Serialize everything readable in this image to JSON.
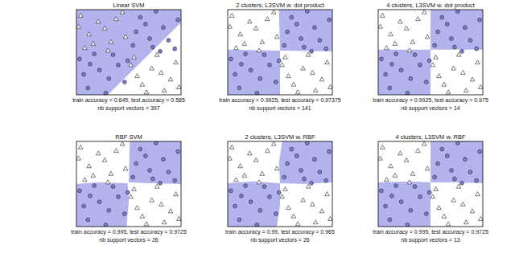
{
  "chart_data": [
    {
      "type": "scatter",
      "title": "Linear SVM",
      "annotations": [
        "train accuracy = 0.645, test accuracy = 0.585",
        "nb support vectors = 397"
      ],
      "xlim": [
        0,
        1
      ],
      "ylim": [
        0,
        1
      ],
      "tick_labels": false,
      "regions": [
        {
          "x": [
            0,
            0.3,
            1,
            1,
            0
          ],
          "y": [
            0,
            0,
            0.85,
            1,
            1
          ],
          "color": "#b3b3ee"
        }
      ],
      "series": [
        {
          "marker": "triangle",
          "color": "#ffffff",
          "x": [
            0.04,
            0.12,
            0.21,
            0.33,
            0.44,
            0.08,
            0.27,
            0.38,
            0.16,
            0.47,
            0.02,
            0.3,
            0.55,
            0.63,
            0.72,
            0.84,
            0.95,
            0.58,
            0.77,
            0.9,
            0.67,
            0.98,
            0.81,
            0.52
          ],
          "values": [
            0.93,
            0.71,
            0.86,
            0.62,
            0.97,
            0.55,
            0.78,
            0.89,
            0.6,
            0.68,
            0.8,
            0.52,
            0.44,
            0.12,
            0.31,
            0.05,
            0.38,
            0.22,
            0.47,
            0.18,
            0.03,
            0.09,
            0.26,
            0.35
          ]
        },
        {
          "marker": "circle",
          "color": "#7b7bd9",
          "x": [
            0.54,
            0.61,
            0.7,
            0.83,
            0.94,
            0.57,
            0.76,
            0.88,
            0.66,
            0.97,
            0.8,
            0.73,
            0.03,
            0.11,
            0.22,
            0.35,
            0.46,
            0.07,
            0.28,
            0.4,
            0.17,
            0.49,
            0.13,
            0.31
          ],
          "values": [
            0.58,
            0.91,
            0.66,
            0.79,
            0.54,
            0.74,
            0.98,
            0.64,
            0.83,
            0.88,
            0.51,
            0.56,
            0.42,
            0.08,
            0.29,
            0.47,
            0.15,
            0.24,
            0.02,
            0.35,
            0.48,
            0.4,
            0.36,
            0.19
          ]
        }
      ]
    },
    {
      "type": "scatter",
      "title": "2 clusters, L3SVM w. dot product",
      "annotations": [
        "train accuracy = 0.9925, test accuracy = 0.97375",
        "nb support vectors = 141"
      ],
      "xlim": [
        0,
        1
      ],
      "ylim": [
        0,
        1
      ],
      "tick_labels": false,
      "regions": [
        {
          "x": [
            0.5,
            1,
            1,
            0.49
          ],
          "y": [
            0.52,
            0.51,
            1,
            1
          ],
          "color": "#b3b3ee"
        },
        {
          "x": [
            0,
            0.5,
            0.5,
            0
          ],
          "y": [
            0,
            0,
            0.52,
            0.53
          ],
          "color": "#b3b3ee"
        }
      ],
      "series": [
        {
          "marker": "triangle",
          "color": "#ffffff",
          "x": [
            0.04,
            0.12,
            0.21,
            0.33,
            0.44,
            0.08,
            0.27,
            0.38,
            0.16,
            0.47,
            0.02,
            0.3,
            0.55,
            0.63,
            0.72,
            0.84,
            0.95,
            0.58,
            0.77,
            0.9,
            0.67,
            0.98,
            0.81,
            0.52
          ],
          "values": [
            0.93,
            0.71,
            0.86,
            0.62,
            0.97,
            0.55,
            0.78,
            0.89,
            0.6,
            0.68,
            0.8,
            0.52,
            0.44,
            0.12,
            0.31,
            0.05,
            0.38,
            0.22,
            0.47,
            0.18,
            0.03,
            0.09,
            0.26,
            0.35
          ]
        },
        {
          "marker": "circle",
          "color": "#7b7bd9",
          "x": [
            0.54,
            0.61,
            0.7,
            0.83,
            0.94,
            0.57,
            0.76,
            0.88,
            0.66,
            0.97,
            0.8,
            0.73,
            0.03,
            0.11,
            0.22,
            0.35,
            0.46,
            0.07,
            0.28,
            0.4,
            0.17,
            0.49,
            0.13,
            0.31
          ],
          "values": [
            0.58,
            0.91,
            0.66,
            0.79,
            0.54,
            0.74,
            0.98,
            0.64,
            0.83,
            0.88,
            0.51,
            0.56,
            0.42,
            0.08,
            0.29,
            0.47,
            0.15,
            0.24,
            0.02,
            0.35,
            0.48,
            0.4,
            0.36,
            0.19
          ]
        }
      ]
    },
    {
      "type": "scatter",
      "title": "4 clusters, L3SVM w. dot product",
      "annotations": [
        "train accuracy = 0.9925, test accuracy = 0.975",
        "nb support vectors = 14"
      ],
      "xlim": [
        0,
        1
      ],
      "ylim": [
        0,
        1
      ],
      "tick_labels": false,
      "regions": [
        {
          "x": [
            0.5,
            1,
            1,
            0.5
          ],
          "y": [
            0.53,
            0.53,
            1,
            1
          ],
          "color": "#b3b3ee"
        },
        {
          "x": [
            0,
            0.5,
            0.5,
            0
          ],
          "y": [
            0,
            0,
            0.53,
            0.53
          ],
          "color": "#b3b3ee"
        }
      ],
      "series": [
        {
          "marker": "triangle",
          "color": "#ffffff",
          "x": [
            0.04,
            0.12,
            0.21,
            0.33,
            0.44,
            0.08,
            0.27,
            0.38,
            0.16,
            0.47,
            0.02,
            0.3,
            0.55,
            0.63,
            0.72,
            0.84,
            0.95,
            0.58,
            0.77,
            0.9,
            0.67,
            0.98,
            0.81,
            0.52
          ],
          "values": [
            0.93,
            0.71,
            0.86,
            0.62,
            0.97,
            0.55,
            0.78,
            0.89,
            0.6,
            0.68,
            0.8,
            0.52,
            0.44,
            0.12,
            0.31,
            0.05,
            0.38,
            0.22,
            0.47,
            0.18,
            0.03,
            0.09,
            0.26,
            0.35
          ]
        },
        {
          "marker": "circle",
          "color": "#7b7bd9",
          "x": [
            0.54,
            0.61,
            0.7,
            0.83,
            0.94,
            0.57,
            0.76,
            0.88,
            0.66,
            0.97,
            0.8,
            0.73,
            0.03,
            0.11,
            0.22,
            0.35,
            0.46,
            0.07,
            0.28,
            0.4,
            0.17,
            0.49,
            0.13,
            0.31
          ],
          "values": [
            0.58,
            0.91,
            0.66,
            0.79,
            0.54,
            0.74,
            0.98,
            0.64,
            0.83,
            0.88,
            0.51,
            0.56,
            0.42,
            0.08,
            0.29,
            0.47,
            0.15,
            0.24,
            0.02,
            0.35,
            0.48,
            0.4,
            0.36,
            0.19
          ]
        }
      ]
    },
    {
      "type": "scatter",
      "title": "RBF SVM",
      "annotations": [
        "train accuracy = 0.995, test accuracy = 0.9725",
        "nb support vectors = 26"
      ],
      "xlim": [
        0,
        1
      ],
      "ylim": [
        0,
        1
      ],
      "tick_labels": false,
      "regions": [
        {
          "x": [
            0.5,
            0.7,
            1,
            1,
            0.51
          ],
          "y": [
            0.52,
            0.51,
            0.5,
            1,
            1
          ],
          "color": "#b3b3ee"
        },
        {
          "x": [
            0,
            0.48,
            0.5,
            0.49,
            0.2,
            0
          ],
          "y": [
            0,
            0,
            0.3,
            0.51,
            0.52,
            0.5
          ],
          "color": "#b3b3ee"
        }
      ],
      "series": [
        {
          "marker": "triangle",
          "color": "#ffffff",
          "x": [
            0.04,
            0.12,
            0.21,
            0.33,
            0.44,
            0.08,
            0.27,
            0.38,
            0.16,
            0.47,
            0.02,
            0.3,
            0.55,
            0.63,
            0.72,
            0.84,
            0.95,
            0.58,
            0.77,
            0.9,
            0.67,
            0.98,
            0.81,
            0.52
          ],
          "values": [
            0.93,
            0.71,
            0.86,
            0.62,
            0.97,
            0.55,
            0.78,
            0.89,
            0.6,
            0.68,
            0.8,
            0.52,
            0.44,
            0.12,
            0.31,
            0.05,
            0.38,
            0.22,
            0.47,
            0.18,
            0.03,
            0.09,
            0.26,
            0.35
          ]
        },
        {
          "marker": "circle",
          "color": "#7b7bd9",
          "x": [
            0.54,
            0.61,
            0.7,
            0.83,
            0.94,
            0.57,
            0.76,
            0.88,
            0.66,
            0.97,
            0.8,
            0.73,
            0.03,
            0.11,
            0.22,
            0.35,
            0.46,
            0.07,
            0.28,
            0.4,
            0.17,
            0.49,
            0.13,
            0.31
          ],
          "values": [
            0.58,
            0.91,
            0.66,
            0.79,
            0.54,
            0.74,
            0.98,
            0.64,
            0.83,
            0.88,
            0.51,
            0.56,
            0.42,
            0.08,
            0.29,
            0.47,
            0.15,
            0.24,
            0.02,
            0.35,
            0.48,
            0.4,
            0.36,
            0.19
          ]
        }
      ]
    },
    {
      "type": "scatter",
      "title": "2 clusters, L3SVM w. RBF",
      "annotations": [
        "train accuracy = 0.99, test accuracy = 0.965",
        "nb support vectors = 26"
      ],
      "xlim": [
        0,
        1
      ],
      "ylim": [
        0,
        1
      ],
      "tick_labels": false,
      "regions": [
        {
          "x": [
            0.5,
            0.75,
            1,
            1,
            0.52,
            0.49
          ],
          "y": [
            0.51,
            0.5,
            0.52,
            1,
            1,
            0.75
          ],
          "color": "#b3b3ee"
        },
        {
          "x": [
            0,
            0.47,
            0.5,
            0.5,
            0.25,
            0
          ],
          "y": [
            0,
            0,
            0.25,
            0.51,
            0.53,
            0.51
          ],
          "color": "#b3b3ee"
        }
      ],
      "series": [
        {
          "marker": "triangle",
          "color": "#ffffff",
          "x": [
            0.04,
            0.12,
            0.21,
            0.33,
            0.44,
            0.08,
            0.27,
            0.38,
            0.16,
            0.47,
            0.02,
            0.3,
            0.55,
            0.63,
            0.72,
            0.84,
            0.95,
            0.58,
            0.77,
            0.9,
            0.67,
            0.98,
            0.81,
            0.52
          ],
          "values": [
            0.93,
            0.71,
            0.86,
            0.62,
            0.97,
            0.55,
            0.78,
            0.89,
            0.6,
            0.68,
            0.8,
            0.52,
            0.44,
            0.12,
            0.31,
            0.05,
            0.38,
            0.22,
            0.47,
            0.18,
            0.03,
            0.09,
            0.26,
            0.35
          ]
        },
        {
          "marker": "circle",
          "color": "#7b7bd9",
          "x": [
            0.54,
            0.61,
            0.7,
            0.83,
            0.94,
            0.57,
            0.76,
            0.88,
            0.66,
            0.97,
            0.8,
            0.73,
            0.03,
            0.11,
            0.22,
            0.35,
            0.46,
            0.07,
            0.28,
            0.4,
            0.17,
            0.49,
            0.13,
            0.31
          ],
          "values": [
            0.58,
            0.91,
            0.66,
            0.79,
            0.54,
            0.74,
            0.98,
            0.64,
            0.83,
            0.88,
            0.51,
            0.56,
            0.42,
            0.08,
            0.29,
            0.47,
            0.15,
            0.24,
            0.02,
            0.35,
            0.48,
            0.4,
            0.36,
            0.19
          ]
        }
      ]
    },
    {
      "type": "scatter",
      "title": "4 clusters, L3SVM w. RBF",
      "annotations": [
        "train accuracy = 0.995, test accuracy = 0.9725",
        "nb support vectors = 13"
      ],
      "xlim": [
        0,
        1
      ],
      "ylim": [
        0,
        1
      ],
      "tick_labels": false,
      "regions": [
        {
          "x": [
            0.5,
            0.7,
            1,
            1,
            0.5
          ],
          "y": [
            0.52,
            0.52,
            0.51,
            1,
            1
          ],
          "color": "#b3b3ee"
        },
        {
          "x": [
            0,
            0.5,
            0.5,
            0.3,
            0
          ],
          "y": [
            0,
            0,
            0.52,
            0.53,
            0.52
          ],
          "color": "#b3b3ee"
        }
      ],
      "series": [
        {
          "marker": "triangle",
          "color": "#ffffff",
          "x": [
            0.04,
            0.12,
            0.21,
            0.33,
            0.44,
            0.08,
            0.27,
            0.38,
            0.16,
            0.47,
            0.02,
            0.3,
            0.55,
            0.63,
            0.72,
            0.84,
            0.95,
            0.58,
            0.77,
            0.9,
            0.67,
            0.98,
            0.81,
            0.52
          ],
          "values": [
            0.93,
            0.71,
            0.86,
            0.62,
            0.97,
            0.55,
            0.78,
            0.89,
            0.6,
            0.68,
            0.8,
            0.52,
            0.44,
            0.12,
            0.31,
            0.05,
            0.38,
            0.22,
            0.47,
            0.18,
            0.03,
            0.09,
            0.26,
            0.35
          ]
        },
        {
          "marker": "circle",
          "color": "#7b7bd9",
          "x": [
            0.54,
            0.61,
            0.7,
            0.83,
            0.94,
            0.57,
            0.76,
            0.88,
            0.66,
            0.97,
            0.8,
            0.73,
            0.03,
            0.11,
            0.22,
            0.35,
            0.46,
            0.07,
            0.28,
            0.4,
            0.17,
            0.49,
            0.13,
            0.31
          ],
          "values": [
            0.58,
            0.91,
            0.66,
            0.79,
            0.54,
            0.74,
            0.98,
            0.64,
            0.83,
            0.88,
            0.51,
            0.56,
            0.42,
            0.08,
            0.29,
            0.47,
            0.15,
            0.24,
            0.02,
            0.35,
            0.48,
            0.4,
            0.36,
            0.19
          ]
        }
      ]
    }
  ]
}
